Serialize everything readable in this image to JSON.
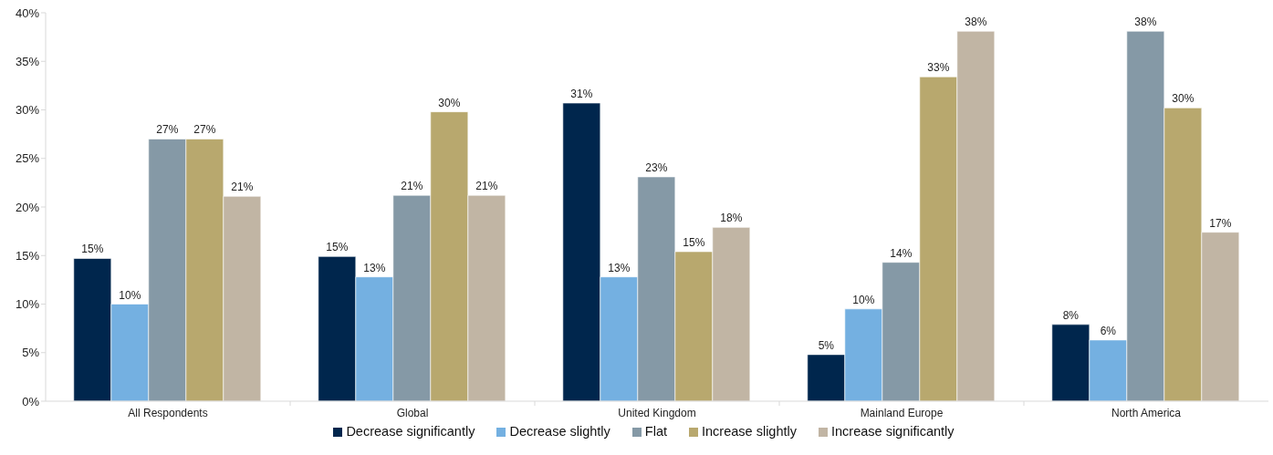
{
  "chart_data": {
    "type": "bar",
    "categories": [
      "All Respondents",
      "Global",
      "United Kingdom",
      "Mainland Europe",
      "North America"
    ],
    "series": [
      {
        "name": "Decrease significantly",
        "color": "#00264d",
        "values": [
          14.7,
          14.9,
          30.7,
          4.8,
          7.9
        ],
        "value_labels": [
          "15%",
          "15%",
          "31%",
          "5%",
          "8%"
        ]
      },
      {
        "name": "Decrease slightly",
        "color": "#74b0e1",
        "values": [
          10.0,
          12.8,
          12.8,
          9.5,
          6.3
        ],
        "value_labels": [
          "10%",
          "13%",
          "13%",
          "10%",
          "6%"
        ]
      },
      {
        "name": "Flat",
        "color": "#8599a6",
        "values": [
          27.0,
          21.2,
          23.1,
          14.3,
          38.1
        ],
        "value_labels": [
          "27%",
          "21%",
          "23%",
          "14%",
          "38%"
        ]
      },
      {
        "name": "Increase slightly",
        "color": "#b8a86e",
        "values": [
          27.0,
          29.8,
          15.4,
          33.4,
          30.2
        ],
        "value_labels": [
          "27%",
          "30%",
          "15%",
          "33%",
          "30%"
        ]
      },
      {
        "name": "Increase significantly",
        "color": "#c1b5a4",
        "values": [
          21.1,
          21.2,
          17.9,
          38.1,
          17.4
        ],
        "value_labels": [
          "21%",
          "21%",
          "18%",
          "38%",
          "17%"
        ]
      }
    ],
    "ylim": [
      0,
      40
    ],
    "yticks": [
      {
        "value": 0,
        "label": "0%"
      },
      {
        "value": 5,
        "label": "5%"
      },
      {
        "value": 10,
        "label": "10%"
      },
      {
        "value": 15,
        "label": "15%"
      },
      {
        "value": 20,
        "label": "20%"
      },
      {
        "value": 25,
        "label": "25%"
      },
      {
        "value": 30,
        "label": "30%"
      },
      {
        "value": 35,
        "label": "35%"
      },
      {
        "value": 40,
        "label": "40%"
      }
    ],
    "legend": "bottom"
  }
}
